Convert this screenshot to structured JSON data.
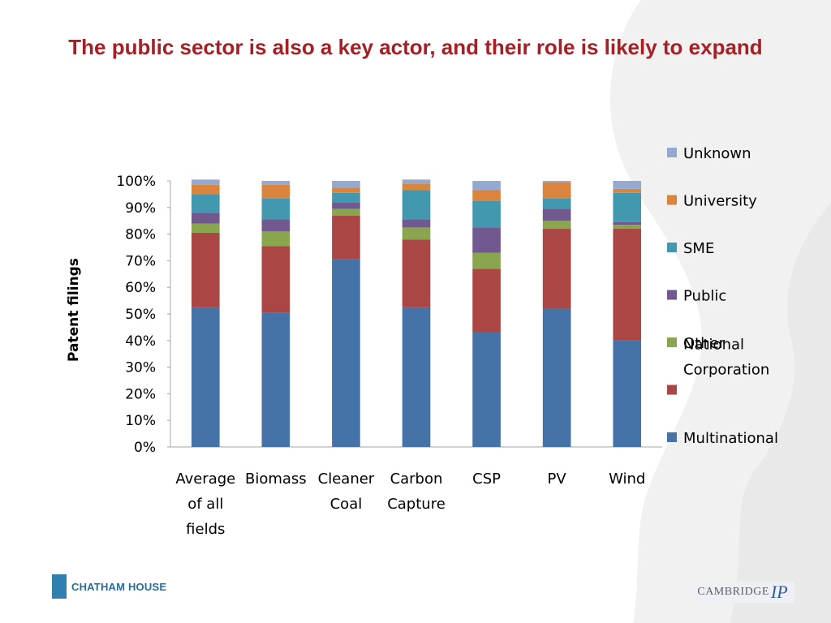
{
  "slide": {
    "title": "The public sector is also a key actor, and their role is likely to expand"
  },
  "logos": {
    "left": "CHATHAM HOUSE",
    "right_main": "CAMBRIDGE",
    "right_mark": "IP"
  },
  "chart_data": {
    "type": "bar",
    "stacked": true,
    "normalized": true,
    "ylabel": "Patent filings",
    "xlabel": "",
    "ylim": [
      0,
      100
    ],
    "yticks": [
      "0%",
      "10%",
      "20%",
      "30%",
      "40%",
      "50%",
      "60%",
      "70%",
      "80%",
      "90%",
      "100%"
    ],
    "categories": [
      [
        "Average",
        "of all",
        "fields"
      ],
      [
        "Biomass"
      ],
      [
        "Cleaner",
        "Coal"
      ],
      [
        "Carbon",
        "Capture"
      ],
      [
        "CSP"
      ],
      [
        "PV"
      ],
      [
        "Wind"
      ]
    ],
    "series": [
      {
        "name": "Multinational",
        "color": "#4572a7",
        "values": [
          52.5,
          50.5,
          70.5,
          52.5,
          43,
          52,
          40
        ]
      },
      {
        "name": "National Corporation",
        "color": "#aa4643",
        "values": [
          28,
          25,
          16.5,
          25.5,
          24,
          30,
          42
        ]
      },
      {
        "name": "Other",
        "color": "#89a54e",
        "values": [
          3.5,
          5.5,
          2.5,
          4.5,
          6,
          3,
          1.5
        ]
      },
      {
        "name": "Public",
        "color": "#71588f",
        "values": [
          4,
          4.5,
          2.5,
          3,
          9.5,
          4.5,
          1
        ]
      },
      {
        "name": "SME",
        "color": "#4198af",
        "values": [
          7,
          8,
          3.5,
          11,
          10,
          4,
          11
        ]
      },
      {
        "name": "University",
        "color": "#db843d",
        "values": [
          3.5,
          5,
          2,
          2.5,
          4,
          6,
          1.5
        ]
      },
      {
        "name": "Unknown",
        "color": "#93a9cf",
        "values": [
          2,
          1.5,
          2.5,
          1.5,
          3.5,
          0.5,
          3
        ]
      }
    ],
    "legend_order": [
      "Unknown",
      "University",
      "SME",
      "Public",
      "Other",
      "National Corporation",
      "Multinational"
    ],
    "legend_placement": "right",
    "grid": false
  }
}
